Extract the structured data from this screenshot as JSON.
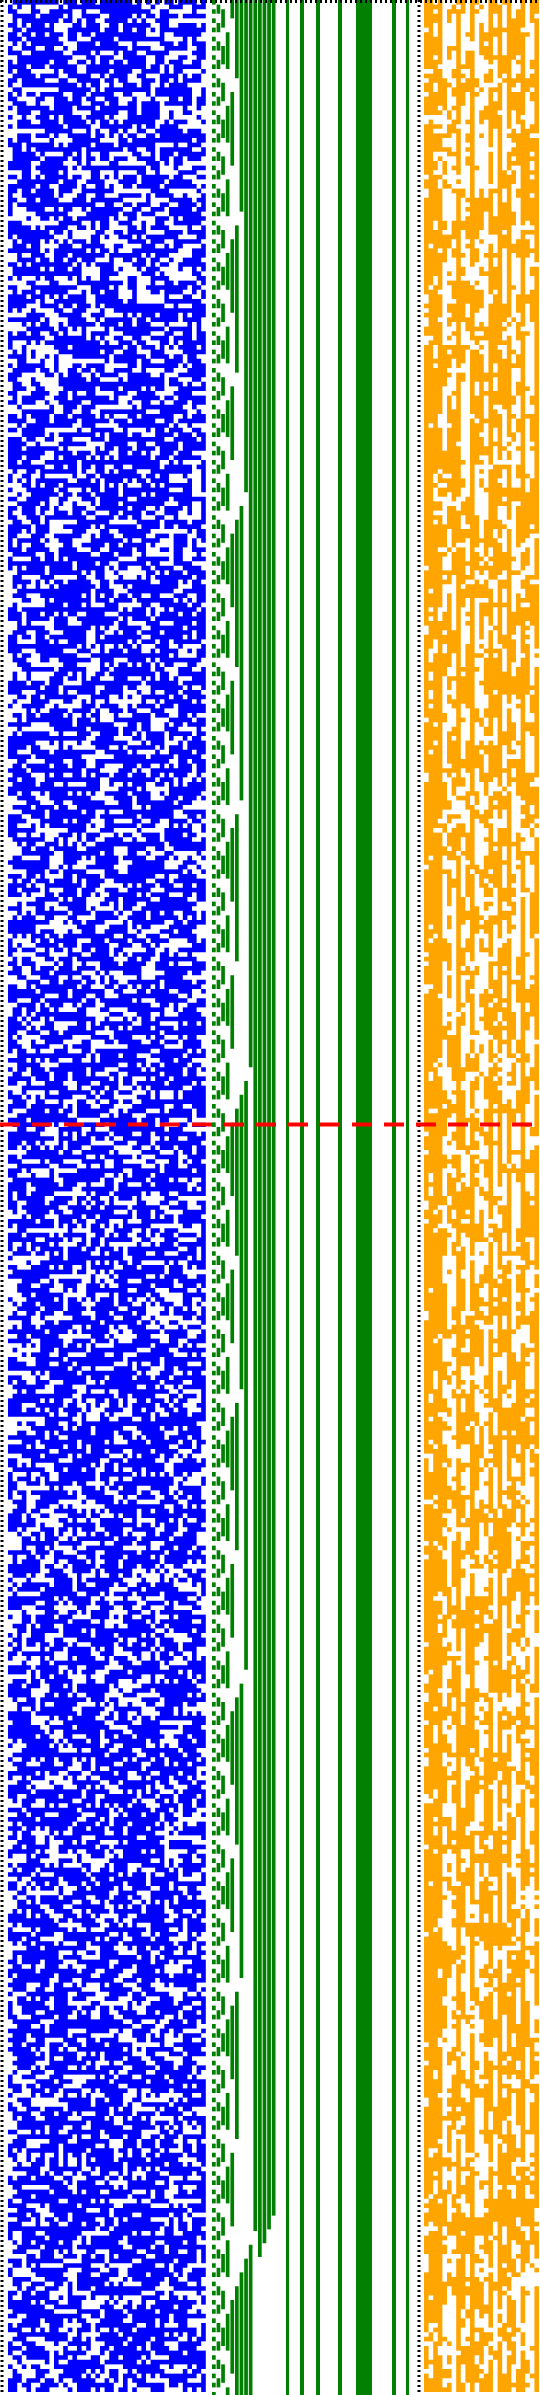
{
  "colors": {
    "blue": "#0000ff",
    "green": "#008000",
    "orange": "#ffa500",
    "red": "#ff0000",
    "black": "#000000",
    "background": "#ffffff"
  },
  "chart_data": {
    "type": "heatmap",
    "title": "",
    "xlabel": "",
    "ylabel": "",
    "grid": false,
    "legend": "none",
    "bands": [
      {
        "id": "blue-bits",
        "color": "#0000ff",
        "density": 0.55
      },
      {
        "id": "green-stairs",
        "color": "#008000",
        "density": 0.0
      },
      {
        "id": "orange-bits",
        "color": "#ffa500",
        "density": 0.33
      }
    ],
    "marker": {
      "kind": "horizontal-dashed-line",
      "color": "#ff0000",
      "row_fraction": 0.4695
    }
  }
}
